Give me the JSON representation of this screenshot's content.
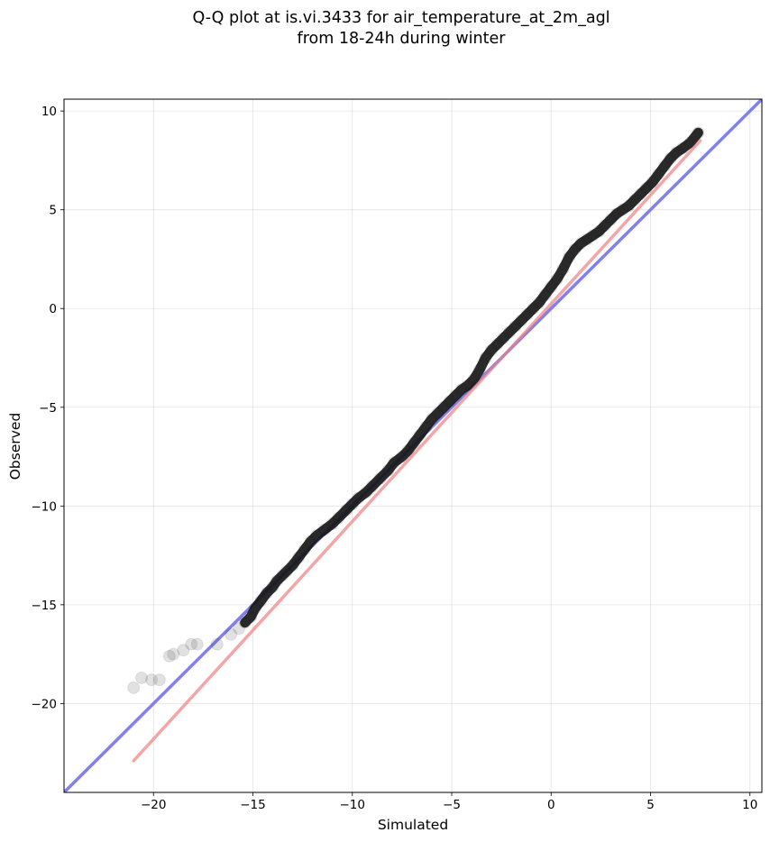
{
  "chart_data": {
    "type": "scatter",
    "title": "Q-Q plot at is.vi.3433 for air_temperature_at_2m_agl",
    "subtitle": "from 18-24h during winter",
    "xlabel": "Simulated",
    "ylabel": "Observed",
    "xlim": [
      -24.5,
      10.6
    ],
    "ylim": [
      -24.5,
      10.6
    ],
    "grid": true,
    "xticks": [
      -20,
      -15,
      -10,
      -5,
      0,
      5,
      10
    ],
    "yticks": [
      -20,
      -15,
      -10,
      -5,
      0,
      5,
      10
    ],
    "xtick_labels": [
      "−20",
      "−15",
      "−10",
      "−5",
      "0",
      "5",
      "10"
    ],
    "ytick_labels": [
      "−20",
      "−15",
      "−10",
      "−5",
      "0",
      "5",
      "10"
    ],
    "series": [
      {
        "kind": "quantiles",
        "color": "#333333",
        "x": [
          -21.0,
          -20.6,
          -20.1,
          -19.7,
          -19.2,
          -19.0,
          -18.5,
          -18.1,
          -17.8,
          -16.8,
          -16.1,
          -15.7,
          -15.4,
          -15.1,
          -14.9,
          -14.6,
          -14.3,
          -14.0,
          -13.8,
          -13.5,
          -13.3,
          -13.0,
          -12.7,
          -12.4,
          -12.1,
          -11.8,
          -11.4,
          -11.0,
          -10.7,
          -10.3,
          -10.0,
          -9.7,
          -9.3,
          -9.0,
          -8.6,
          -8.2,
          -7.9,
          -7.5,
          -7.2,
          -6.9,
          -6.6,
          -6.3,
          -6.0,
          -5.7,
          -5.4,
          -5.1,
          -4.8,
          -4.5,
          -4.2,
          -3.9,
          -3.6,
          -3.3,
          -3.0,
          -2.7,
          -2.4,
          -2.1,
          -1.8,
          -1.5,
          -1.2,
          -0.9,
          -0.6,
          -0.3,
          0.0,
          0.3,
          0.6,
          0.9,
          1.2,
          1.5,
          1.8,
          2.1,
          2.4,
          2.7,
          3.0,
          3.3,
          3.6,
          3.9,
          4.2,
          4.5,
          4.8,
          5.1,
          5.4,
          5.7,
          6.0,
          6.3,
          6.6,
          7.0,
          7.4
        ],
        "y": [
          -19.2,
          -18.7,
          -18.8,
          -18.8,
          -17.6,
          -17.5,
          -17.3,
          -17.0,
          -17.0,
          -17.0,
          -16.5,
          -16.2,
          -15.9,
          -15.6,
          -15.2,
          -14.8,
          -14.4,
          -14.1,
          -13.8,
          -13.5,
          -13.3,
          -13.0,
          -12.6,
          -12.2,
          -11.8,
          -11.5,
          -11.2,
          -10.9,
          -10.6,
          -10.2,
          -9.9,
          -9.6,
          -9.3,
          -9.0,
          -8.6,
          -8.2,
          -7.8,
          -7.5,
          -7.2,
          -6.8,
          -6.4,
          -6.0,
          -5.6,
          -5.3,
          -5.0,
          -4.7,
          -4.4,
          -4.1,
          -3.9,
          -3.6,
          -3.1,
          -2.5,
          -2.1,
          -1.8,
          -1.5,
          -1.2,
          -0.9,
          -0.6,
          -0.3,
          0.0,
          0.3,
          0.7,
          1.1,
          1.5,
          2.0,
          2.6,
          3.0,
          3.3,
          3.5,
          3.7,
          3.9,
          4.2,
          4.5,
          4.8,
          5.0,
          5.2,
          5.5,
          5.8,
          6.1,
          6.4,
          6.8,
          7.2,
          7.6,
          7.9,
          8.1,
          8.4,
          8.9
        ]
      },
      {
        "kind": "fit-line",
        "color": "#f08080",
        "x": [
          -21.0,
          7.5
        ],
        "y": [
          -22.9,
          8.5
        ]
      },
      {
        "kind": "identity-line",
        "color": "#8080ee",
        "x": [
          -24.5,
          10.6
        ],
        "y": [
          -24.5,
          10.6
        ]
      }
    ]
  }
}
